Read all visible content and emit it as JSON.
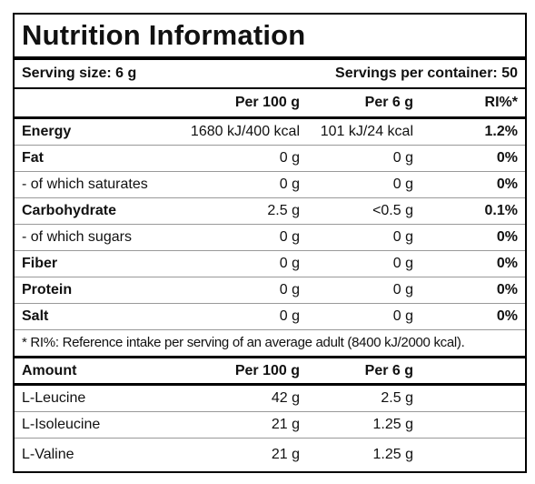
{
  "header": {
    "title": "Nutrition Information"
  },
  "serving": {
    "size": "Serving size: 6 g",
    "count": "Servings per container: 50"
  },
  "table": {
    "columns": [
      "",
      "Per 100 g",
      "Per 6 g",
      "RI%*"
    ],
    "rows": [
      [
        "Energy",
        "1680 kJ/400 kcal",
        "101 kJ/24 kcal",
        "1.2%"
      ],
      [
        "Fat",
        "0 g",
        "0 g",
        "0%"
      ],
      [
        "- of which saturates",
        "0 g",
        "0 g",
        "0%"
      ],
      [
        "Carbohydrate",
        "2.5 g",
        "<0.5 g",
        "0.1%"
      ],
      [
        "- of which sugars",
        "0 g",
        "0 g",
        "0%"
      ],
      [
        "Fiber",
        "0 g",
        "0 g",
        "0%"
      ],
      [
        "Protein",
        "0 g",
        "0 g",
        "0%"
      ],
      [
        "Salt",
        "0 g",
        "0 g",
        "0%"
      ]
    ]
  },
  "note": "* RI%: Reference intake per serving of an average adult (8400 kJ/2000 kcal).",
  "amounts": {
    "columns": [
      "Amount",
      "Per 100 g",
      "Per 6 g"
    ],
    "rows": [
      [
        "L-Leucine",
        "42 g",
        "2.5 g"
      ],
      [
        "L-Isoleucine",
        "21 g",
        "1.25 g"
      ],
      [
        "L-Valine",
        "21 g",
        "1.25 g"
      ]
    ]
  }
}
